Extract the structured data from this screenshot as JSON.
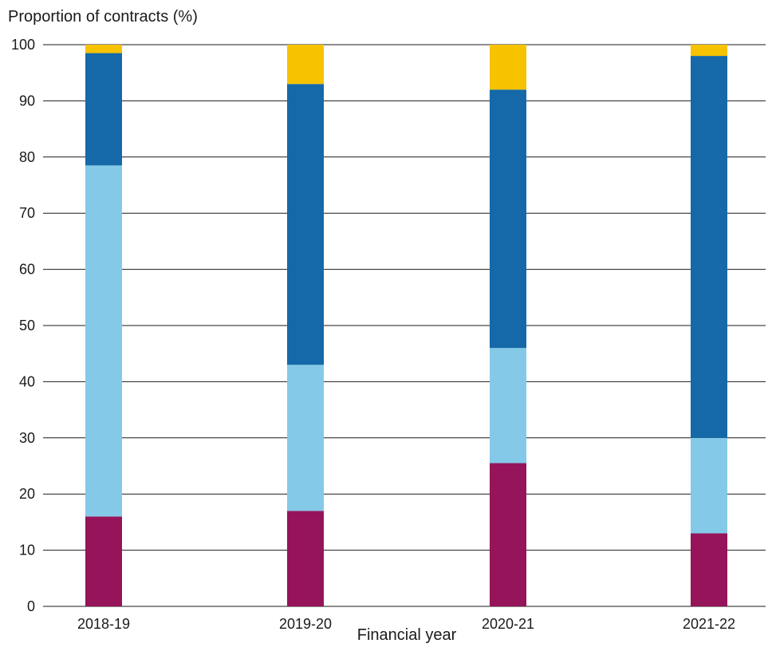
{
  "chart_data": {
    "type": "bar",
    "stacked": true,
    "ylabel": "Proportion of contracts (%)",
    "xlabel": "Financial year",
    "ylim": [
      0,
      100
    ],
    "yticks": [
      0,
      10,
      20,
      30,
      40,
      50,
      60,
      70,
      80,
      90,
      100
    ],
    "categories": [
      "2018-19",
      "2019-20",
      "2020-21",
      "2021-22"
    ],
    "series": [
      {
        "color": "#95145a",
        "values": [
          16,
          17,
          25.5,
          13
        ]
      },
      {
        "color": "#85c9e8",
        "values": [
          62.5,
          26,
          20.5,
          17
        ]
      },
      {
        "color": "#1569a8",
        "values": [
          20,
          50,
          46,
          68
        ]
      },
      {
        "color": "#f7c200",
        "values": [
          1.5,
          7,
          8,
          2
        ]
      }
    ],
    "grid": "horizontal",
    "legend": "none"
  }
}
